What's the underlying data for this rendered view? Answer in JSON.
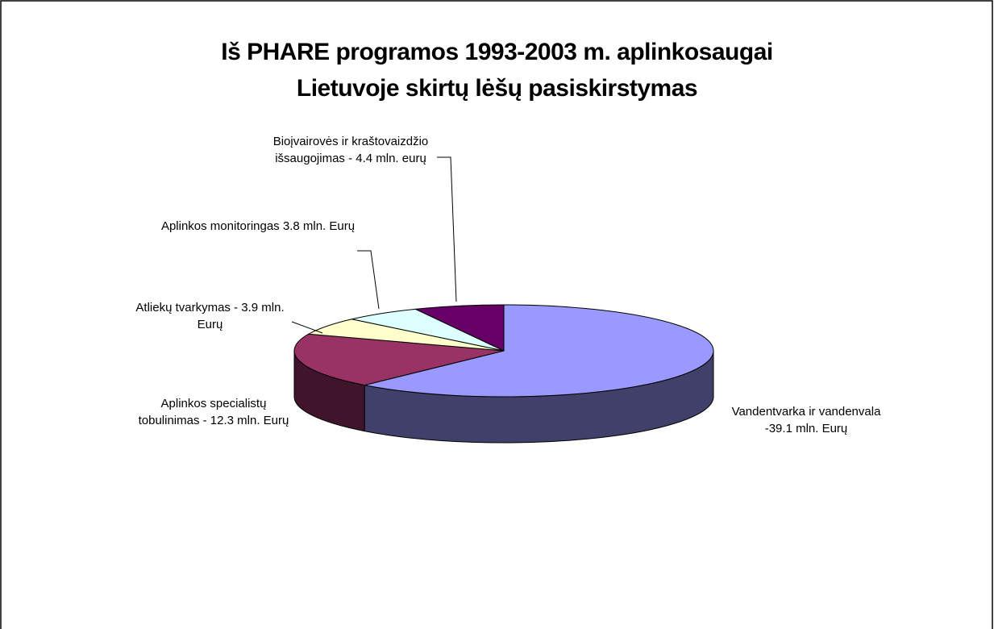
{
  "chart_data": {
    "type": "pie3d",
    "title": "Iš PHARE programos 1993-2003 m. aplinkosaugai\nLietuvoje skirtų lėšų pasiskirstymas",
    "categories": [
      "Vandentvarka ir vandenvala -39.1 mln. Eurų",
      "Aplinkos specialistų tobulinimas - 12.3 mln. Eurų",
      "Atliekų tvarkymas - 3.9 mln. Eurų",
      "Aplinkos monitoringas 3.8 mln. Eurų",
      "Bioįvairovės ir kraštovaizdžio išsaugojimas - 4.4 mln. eurų"
    ],
    "values": [
      39.1,
      12.3,
      3.9,
      3.8,
      4.4
    ],
    "colors": [
      "#9999ff",
      "#993366",
      "#ffffcc",
      "#ddffff",
      "#660066"
    ]
  }
}
